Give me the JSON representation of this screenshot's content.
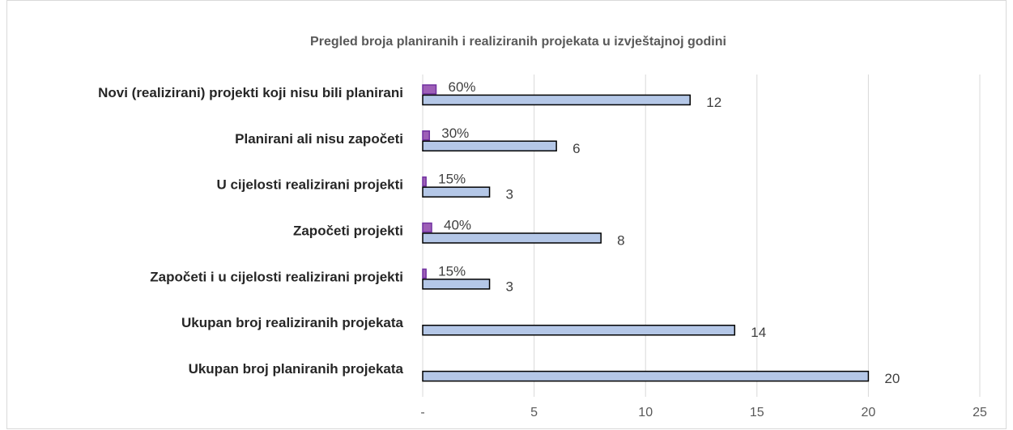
{
  "chart_data": {
    "type": "bar",
    "orientation": "horizontal",
    "title": "Pregled broja planiranih i realiziranih projekata u izvještajnoj godini",
    "categories": [
      "Novi (realizirani) projekti koji nisu bili planirani",
      "Planirani ali nisu započeti",
      "U cijelosti realizirani projekti",
      "Započeti projekti",
      "Započeti i u cijelosti realizirani projekti",
      "Ukupan broj realiziranih projekata",
      "Ukupan broj planiranih projekata"
    ],
    "series": [
      {
        "color": "#9e5fb7",
        "values": [
          0.6,
          0.3,
          0.15,
          0.4,
          0.15,
          null,
          null
        ],
        "value_labels": [
          "60%",
          "30%",
          "15%",
          "40%",
          "15%",
          null,
          null
        ]
      },
      {
        "color": "#b4c7e7",
        "values": [
          12,
          6,
          3,
          8,
          3,
          14,
          20
        ]
      }
    ],
    "xlim": [
      0,
      25
    ],
    "xticks": [
      {
        "value": 0,
        "label": "-"
      },
      5,
      10,
      15,
      20,
      25
    ],
    "grid": true
  }
}
